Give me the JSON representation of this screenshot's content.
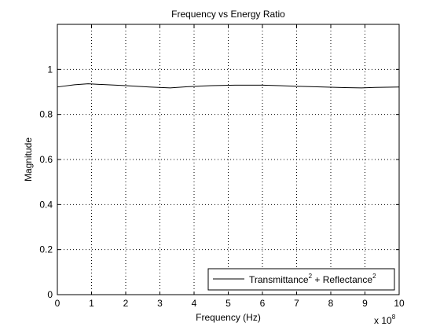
{
  "chart_data": {
    "type": "line",
    "title": "Frequency vs Energy Ratio",
    "xlabel": "Frequency (Hz)",
    "ylabel": "Magnitude",
    "x_multiplier_base": "x 10",
    "x_multiplier_exp": "8",
    "xlim": [
      0,
      10
    ],
    "ylim": [
      0,
      1.2
    ],
    "x_ticks": [
      0,
      1,
      2,
      3,
      4,
      5,
      6,
      7,
      8,
      9,
      10
    ],
    "x_tick_labels": [
      "0",
      "1",
      "2",
      "3",
      "4",
      "5",
      "6",
      "7",
      "8",
      "9",
      "10"
    ],
    "y_ticks": [
      0,
      0.2,
      0.4,
      0.6,
      0.8,
      1
    ],
    "y_tick_labels": [
      "0",
      "0.2",
      "0.4",
      "0.6",
      "0.8",
      "1"
    ],
    "grid": true,
    "grid_style": "dotted",
    "legend_position": "bottom-right",
    "series": [
      {
        "name_parts": {
          "a": "Transmittance",
          "a_exp": "2",
          "sep": " + ",
          "b": "Reflectance",
          "b_exp": "2"
        },
        "color": "#000000",
        "x": [
          0,
          0.5,
          0.9,
          1.3,
          2,
          2.7,
          3.3,
          3.8,
          4.5,
          5.2,
          6,
          6.5,
          7,
          7.5,
          8,
          8.4,
          8.9,
          9.3,
          10
        ],
        "y": [
          0.922,
          0.932,
          0.936,
          0.933,
          0.928,
          0.922,
          0.918,
          0.923,
          0.928,
          0.93,
          0.93,
          0.928,
          0.925,
          0.923,
          0.921,
          0.919,
          0.918,
          0.92,
          0.922
        ]
      }
    ]
  }
}
